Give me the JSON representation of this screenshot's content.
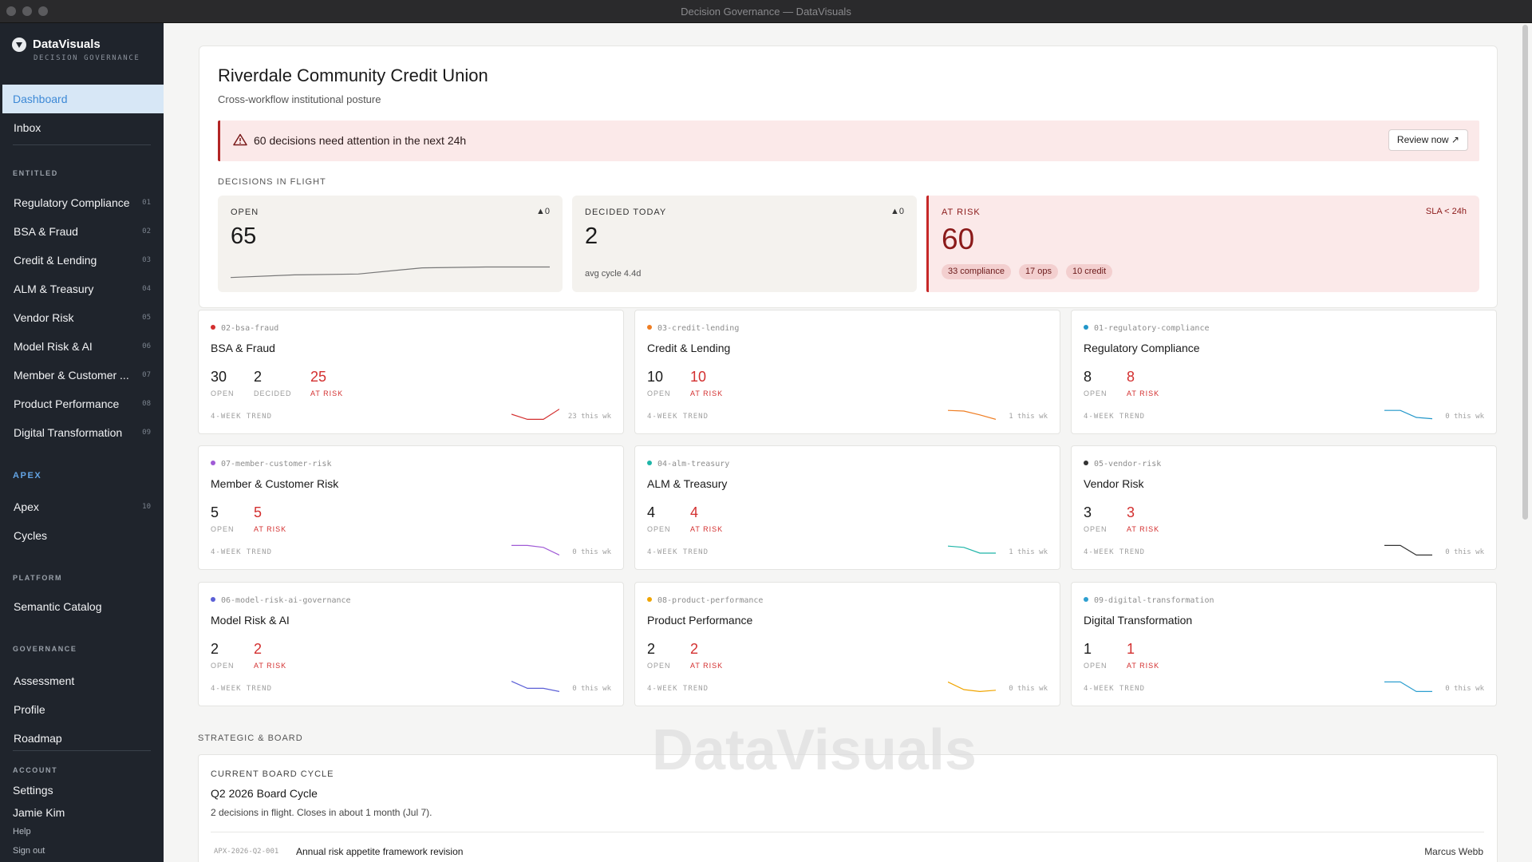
{
  "window": {
    "title": "Decision Governance — DataVisuals"
  },
  "brand": {
    "name": "DataVisuals",
    "subtitle": "DECISION GOVERNANCE"
  },
  "nav": {
    "dashboard": "Dashboard",
    "inbox": "Inbox",
    "entitled_label": "ENTITLED",
    "entitled": [
      {
        "label": "Regulatory Compliance",
        "num": "01"
      },
      {
        "label": "BSA & Fraud",
        "num": "02"
      },
      {
        "label": "Credit & Lending",
        "num": "03"
      },
      {
        "label": "ALM & Treasury",
        "num": "04"
      },
      {
        "label": "Vendor Risk",
        "num": "05"
      },
      {
        "label": "Model Risk & AI",
        "num": "06"
      },
      {
        "label": "Member & Customer ...",
        "num": "07"
      },
      {
        "label": "Product Performance",
        "num": "08"
      },
      {
        "label": "Digital Transformation",
        "num": "09"
      }
    ],
    "apex_label": "APEX",
    "apex": [
      {
        "label": "Apex",
        "num": "10"
      },
      {
        "label": "Cycles",
        "num": ""
      }
    ],
    "platform_label": "PLATFORM",
    "platform": [
      {
        "label": "Semantic Catalog"
      }
    ],
    "governance_label": "GOVERNANCE",
    "governance": [
      {
        "label": "Assessment"
      },
      {
        "label": "Profile"
      },
      {
        "label": "Roadmap"
      }
    ],
    "account_label": "ACCOUNT",
    "settings": "Settings",
    "user": "Jamie Kim",
    "help": "Help",
    "signout": "Sign out"
  },
  "header": {
    "title": "Riverdale Community Credit Union",
    "subtitle": "Cross-workflow institutional posture"
  },
  "alert": {
    "text": "60 decisions need attention in the next 24h",
    "button": "Review now ↗"
  },
  "in_flight": {
    "label": "DECISIONS IN FLIGHT",
    "open": {
      "label": "OPEN",
      "value": "65",
      "delta": "▲0",
      "trend": [
        0.15,
        0.3,
        0.35,
        0.7,
        0.75,
        0.75
      ]
    },
    "decided": {
      "label": "DECIDED TODAY",
      "value": "2",
      "delta": "▲0",
      "note": "avg cycle 4.4d"
    },
    "at_risk": {
      "label": "AT RISK",
      "value": "60",
      "sla": "SLA < 24h",
      "chips": [
        "33 compliance",
        "17 ops",
        "10 credit"
      ]
    }
  },
  "workflows": [
    {
      "slug": "02-bsa-fraud",
      "name": "BSA & Fraud",
      "color": "#d32f2f",
      "open": "30",
      "decided": "2",
      "at_risk": "25",
      "trend": [
        0.5,
        0.9,
        0.9,
        0.1
      ],
      "note": "23 this wk"
    },
    {
      "slug": "03-credit-lending",
      "name": "Credit & Lending",
      "color": "#ef7d22",
      "open": "10",
      "decided": "",
      "at_risk": "10",
      "trend": [
        0.2,
        0.25,
        0.55,
        0.9
      ],
      "note": "1 this wk"
    },
    {
      "slug": "01-regulatory-compliance",
      "name": "Regulatory Compliance",
      "color": "#2196c9",
      "open": "8",
      "decided": "",
      "at_risk": "8",
      "trend": [
        0.2,
        0.2,
        0.75,
        0.85
      ],
      "note": "0 this wk"
    },
    {
      "slug": "07-member-customer-risk",
      "name": "Member & Customer Risk",
      "color": "#a05bd6",
      "open": "5",
      "decided": "",
      "at_risk": "5",
      "trend": [
        0.15,
        0.15,
        0.3,
        0.9
      ],
      "note": "0 this wk"
    },
    {
      "slug": "04-alm-treasury",
      "name": "ALM & Treasury",
      "color": "#1fb5a8",
      "open": "4",
      "decided": "",
      "at_risk": "4",
      "trend": [
        0.2,
        0.3,
        0.75,
        0.75
      ],
      "note": "1 this wk"
    },
    {
      "slug": "05-vendor-risk",
      "name": "Vendor Risk",
      "color": "#333333",
      "open": "3",
      "decided": "",
      "at_risk": "3",
      "trend": [
        0.15,
        0.15,
        0.9,
        0.9
      ],
      "note": "0 this wk"
    },
    {
      "slug": "06-model-risk-ai-governance",
      "name": "Model Risk & AI",
      "color": "#5b5fd6",
      "open": "2",
      "decided": "",
      "at_risk": "2",
      "trend": [
        0.1,
        0.65,
        0.65,
        0.9
      ],
      "note": "0 this wk"
    },
    {
      "slug": "08-product-performance",
      "name": "Product Performance",
      "color": "#f0a500",
      "open": "2",
      "decided": "",
      "at_risk": "2",
      "trend": [
        0.15,
        0.75,
        0.9,
        0.8
      ],
      "note": "0 this wk"
    },
    {
      "slug": "09-digital-transformation",
      "name": "Digital Transformation",
      "color": "#2e9fd0",
      "open": "1",
      "decided": "",
      "at_risk": "1",
      "trend": [
        0.15,
        0.15,
        0.9,
        0.9
      ],
      "note": "0 this wk"
    }
  ],
  "labels": {
    "open": "OPEN",
    "decided": "DECIDED",
    "at_risk": "AT RISK",
    "trend": "4-WEEK TREND"
  },
  "strategic": {
    "label": "STRATEGIC & BOARD",
    "board_label": "CURRENT BOARD CYCLE",
    "board_title": "Q2 2026 Board Cycle",
    "board_sub": "2 decisions in flight. Closes in about 1 month (Jul 7).",
    "row": {
      "id": "APX-2026-Q2-001",
      "title": "Annual risk appetite framework revision",
      "owner": "Marcus Webb"
    }
  },
  "watermark": "DataVisuals"
}
